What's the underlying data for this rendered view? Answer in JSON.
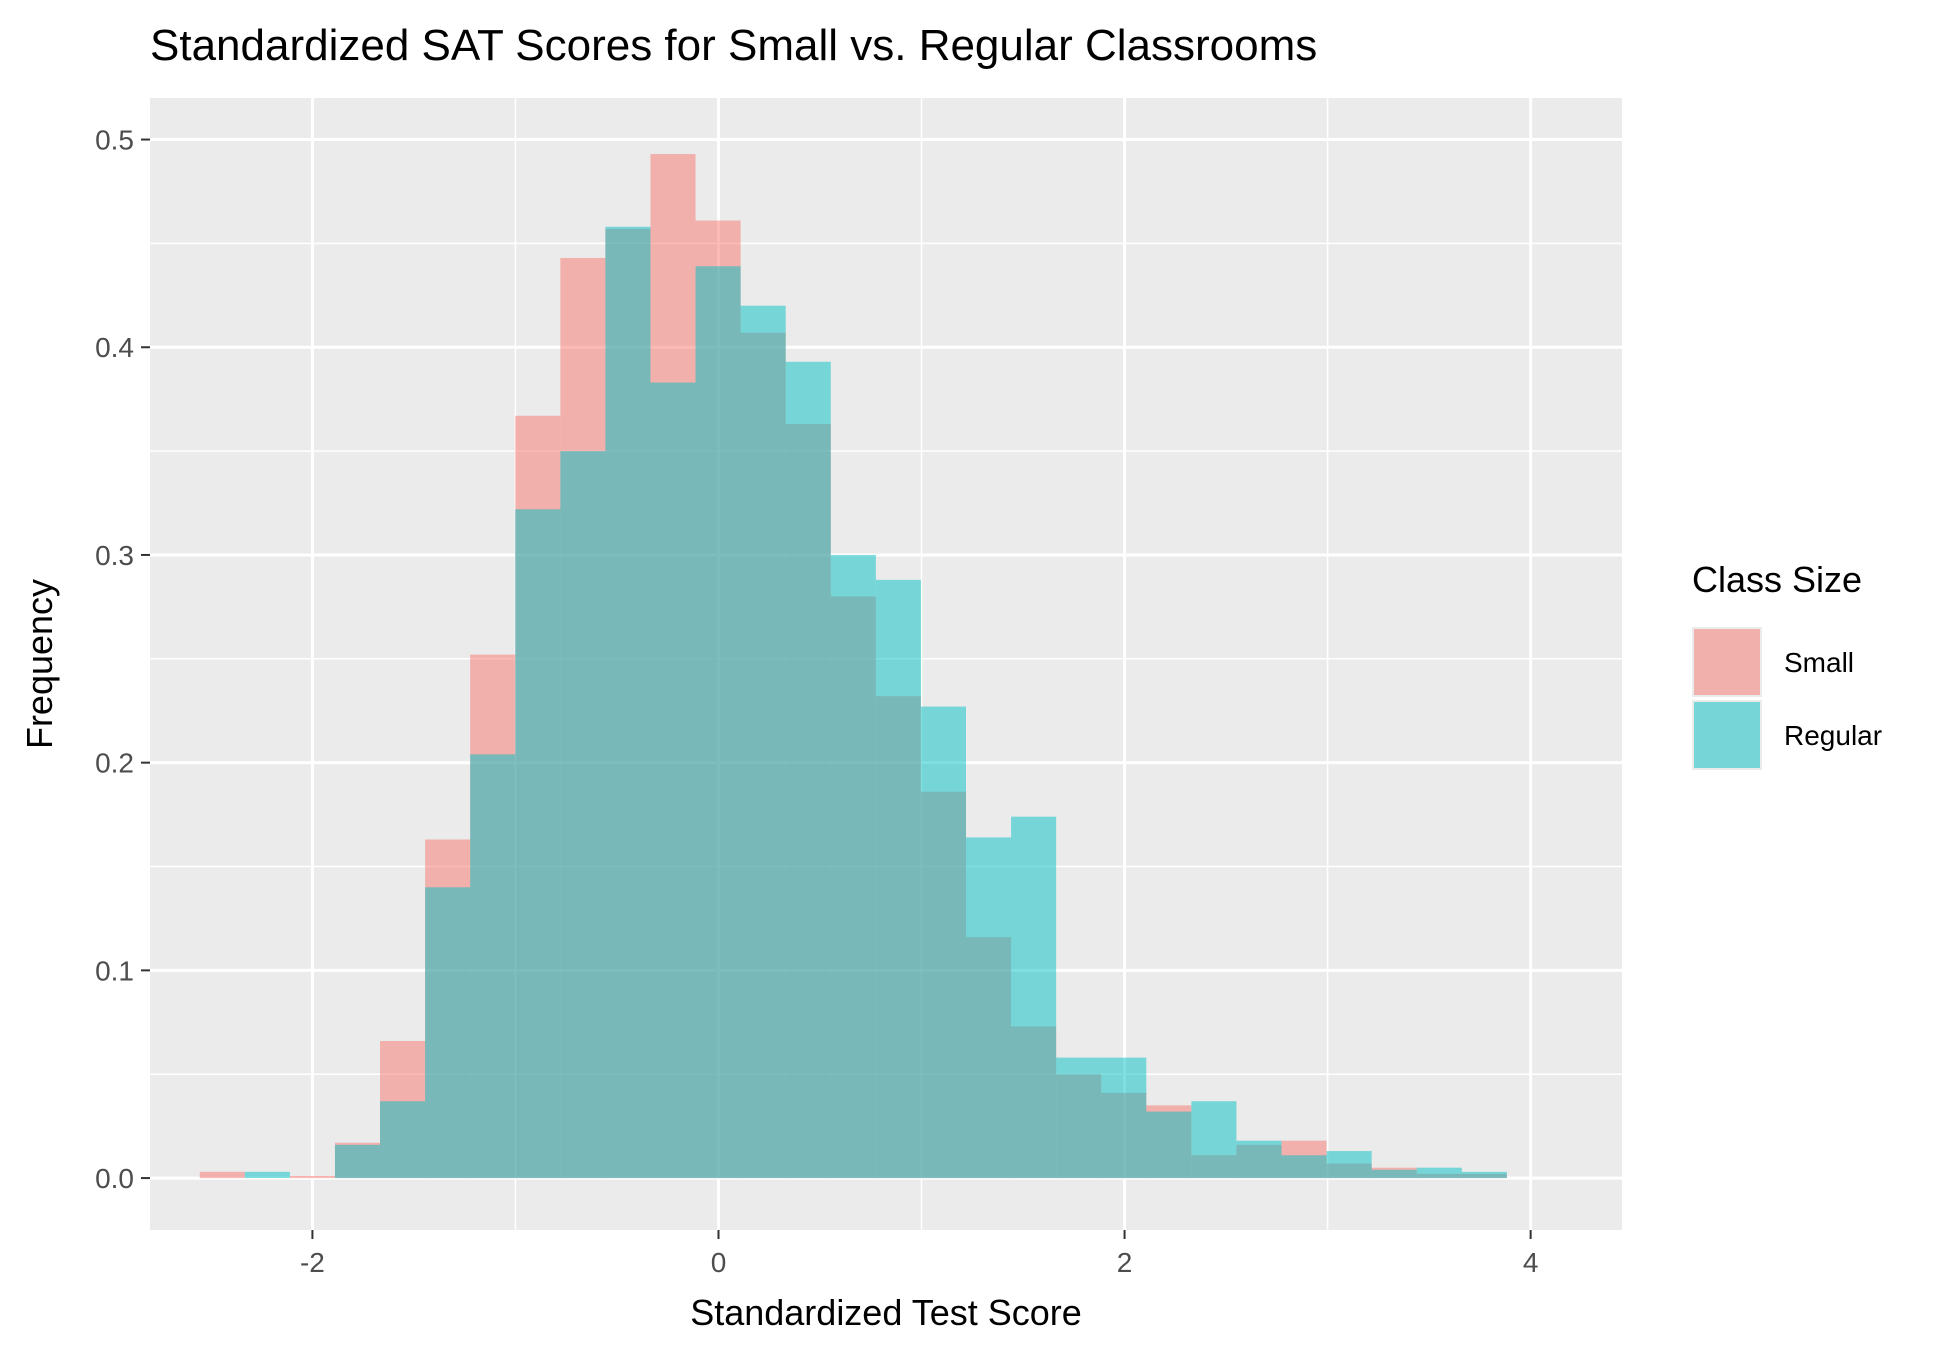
{
  "chart_data": {
    "type": "bar",
    "subtype": "overlapping-histogram",
    "title": "Standardized SAT Scores for Small vs. Regular Classrooms",
    "xlabel": "Standardized Test Score",
    "ylabel": "Frequency",
    "xlim": [
      -2.8,
      4.45
    ],
    "ylim": [
      -0.025,
      0.52
    ],
    "x_ticks": [
      -2,
      0,
      2,
      4
    ],
    "x_tick_labels": [
      "-2",
      "0",
      "2",
      "4"
    ],
    "y_ticks": [
      0.0,
      0.1,
      0.2,
      0.3,
      0.4,
      0.5
    ],
    "y_tick_labels": [
      "0.0",
      "0.1",
      "0.2",
      "0.3",
      "0.4",
      "0.5"
    ],
    "grid": true,
    "legend": {
      "title": "Class Size",
      "position": "right"
    },
    "bin_width": 0.222,
    "bin_start": -2.555,
    "series": [
      {
        "name": "Small",
        "color": "#F8766D",
        "values": [
          0.003,
          0.0,
          0.001,
          0.017,
          0.066,
          0.163,
          0.252,
          0.367,
          0.443,
          0.457,
          0.493,
          0.461,
          0.407,
          0.363,
          0.28,
          0.232,
          0.186,
          0.116,
          0.073,
          0.05,
          0.041,
          0.035,
          0.011,
          0.016,
          0.018,
          0.007,
          0.005,
          0.002,
          0.002
        ]
      },
      {
        "name": "Regular",
        "color": "#00BFC4",
        "values": [
          0.0,
          0.003,
          0.0,
          0.016,
          0.037,
          0.14,
          0.204,
          0.322,
          0.35,
          0.458,
          0.383,
          0.439,
          0.42,
          0.393,
          0.3,
          0.288,
          0.227,
          0.164,
          0.174,
          0.058,
          0.058,
          0.032,
          0.037,
          0.018,
          0.011,
          0.013,
          0.004,
          0.005,
          0.003
        ]
      }
    ]
  }
}
